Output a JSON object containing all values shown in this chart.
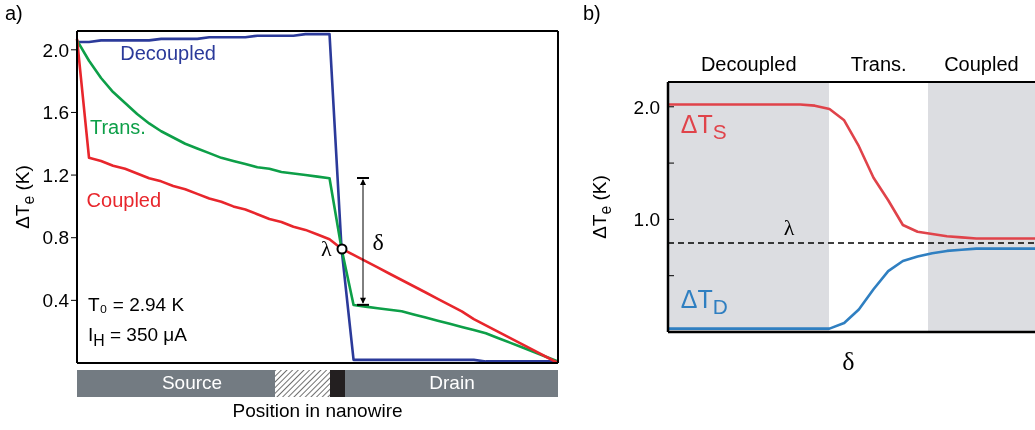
{
  "chart_data": [
    {
      "type": "line",
      "title": "a)",
      "xlabel": "Position in nanowire",
      "ylabel": "ΔT$_{e}$ (K)",
      "categories": [
        null,
        null,
        null,
        null,
        null,
        null,
        null,
        null,
        null,
        null,
        null,
        null,
        null,
        null,
        null,
        null,
        null,
        null,
        null,
        null,
        null,
        null,
        null,
        null,
        null,
        null,
        null,
        null,
        null,
        null,
        null,
        null,
        null,
        null,
        null,
        null,
        null,
        null,
        null,
        null,
        null
      ],
      "ylim": [
        0,
        2.12
      ],
      "yticks": [
        0.4,
        0.8,
        1.2,
        1.6,
        {
          "value": 2,
          "label": "2.0"
        }
      ],
      "tick_labels": "y",
      "series": [
        {
          "name": "Decoupled",
          "color": "#2b3a9a",
          "values": [
            2.05,
            2.05,
            2.06,
            2.06,
            2.06,
            2.06,
            2.06,
            2.07,
            2.07,
            2.07,
            2.07,
            2.08,
            2.08,
            2.08,
            2.08,
            2.09,
            2.09,
            2.09,
            2.09,
            2.1,
            2.1,
            2.1,
            0.73,
            0.02,
            0.02,
            0.02,
            0.02,
            0.02,
            0.02,
            0.02,
            0.02,
            0.02,
            0.02,
            0.02,
            0.01,
            0.01,
            0.01,
            0.01,
            0.01,
            0.01,
            0.01
          ]
        },
        {
          "name": "Trans.",
          "color": "#0d9f48",
          "values": [
            2.06,
            1.93,
            1.82,
            1.73,
            1.66,
            1.59,
            1.53,
            1.48,
            1.44,
            1.4,
            1.37,
            1.34,
            1.31,
            1.29,
            1.27,
            1.25,
            1.24,
            1.22,
            1.21,
            1.2,
            1.19,
            1.18,
            0.73,
            0.37,
            0.36,
            0.35,
            0.34,
            0.33,
            0.31,
            0.29,
            0.27,
            0.25,
            0.23,
            0.21,
            0.19,
            0.16,
            0.13,
            0.1,
            0.07,
            0.04,
            0.01
          ]
        },
        {
          "name": "Coupled",
          "color": "#e8262c",
          "values": [
            2.07,
            1.31,
            1.29,
            1.26,
            1.24,
            1.21,
            1.18,
            1.16,
            1.13,
            1.11,
            1.08,
            1.05,
            1.03,
            1.0,
            0.98,
            0.95,
            0.92,
            0.9,
            0.87,
            0.85,
            0.82,
            0.79,
            0.73,
            0.69,
            0.65,
            0.61,
            0.57,
            0.53,
            0.49,
            0.45,
            0.41,
            0.37,
            0.33,
            0.28,
            0.24,
            0.2,
            0.16,
            0.12,
            0.08,
            0.04,
            0.0
          ]
        }
      ],
      "annotations": [
        "T₀ = 2.94 K",
        "I$_{H}$ = 350 μA",
        "λ",
        "δ",
        "Source",
        "Drain"
      ]
    },
    {
      "type": "line",
      "title": "b)",
      "xlabel": "δ",
      "ylabel": "ΔT$_{e}$ (K)",
      "categories": [
        null,
        null,
        null,
        null,
        null,
        null,
        null,
        null,
        null,
        null,
        null,
        null,
        null,
        null,
        null,
        null,
        null,
        null,
        null,
        null,
        null,
        null,
        null,
        null,
        null,
        null
      ],
      "ylim": [
        0,
        2.22
      ],
      "yticks": [
        {
          "value": 0.5,
          "label": null
        },
        {
          "value": 1,
          "label": "1.0"
        },
        {
          "value": 1.5,
          "label": null
        },
        {
          "value": 2,
          "label": "2.0"
        }
      ],
      "tick_labels": "y",
      "annotations": [
        "Decoupled",
        "Trans.",
        "Coupled"
      ],
      "ref_lines": [
        {
          "axis": "y",
          "value": 0.79,
          "label": "λ",
          "color": "#000000",
          "line_style": "dashed"
        }
      ],
      "series": [
        {
          "name": "ΔT$_{S}$",
          "color": "#e0434a",
          "values": [
            2.02,
            2.02,
            2.02,
            2.02,
            2.02,
            2.02,
            2.02,
            2.02,
            2.02,
            2.02,
            2.01,
            1.98,
            1.88,
            1.65,
            1.37,
            1.17,
            0.95,
            0.89,
            0.87,
            0.85,
            0.84,
            0.83,
            0.83,
            0.83,
            0.83,
            0.83
          ]
        },
        {
          "name": "ΔT$_{D}$",
          "color": "#2f7fc1",
          "values": [
            0.03,
            0.03,
            0.03,
            0.03,
            0.03,
            0.03,
            0.03,
            0.03,
            0.03,
            0.03,
            0.03,
            0.03,
            0.08,
            0.2,
            0.38,
            0.54,
            0.63,
            0.67,
            0.7,
            0.72,
            0.73,
            0.74,
            0.74,
            0.74,
            0.74,
            0.74
          ]
        }
      ]
    }
  ]
}
